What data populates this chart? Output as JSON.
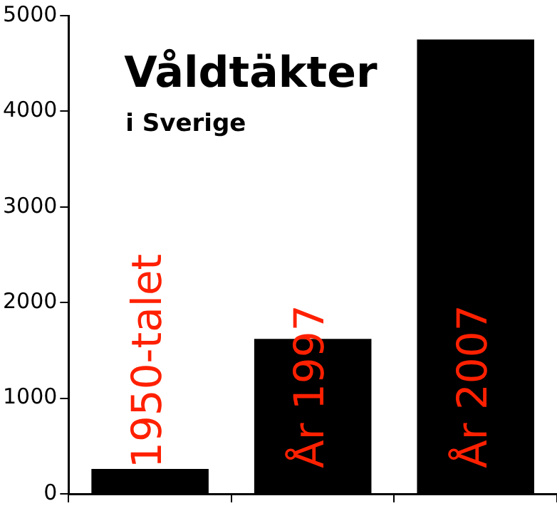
{
  "chart_data": {
    "type": "bar",
    "title": "Våldtäkter",
    "subtitle": "i Sverige",
    "categories": [
      "1950-talet",
      "År 1997",
      "År 2007"
    ],
    "values": [
      260,
      1620,
      4750
    ],
    "color": "#000000",
    "ylim": [
      0,
      5000
    ],
    "yticks": [
      0,
      1000,
      2000,
      3000,
      4000,
      5000
    ],
    "grid": false,
    "legend": false
  }
}
